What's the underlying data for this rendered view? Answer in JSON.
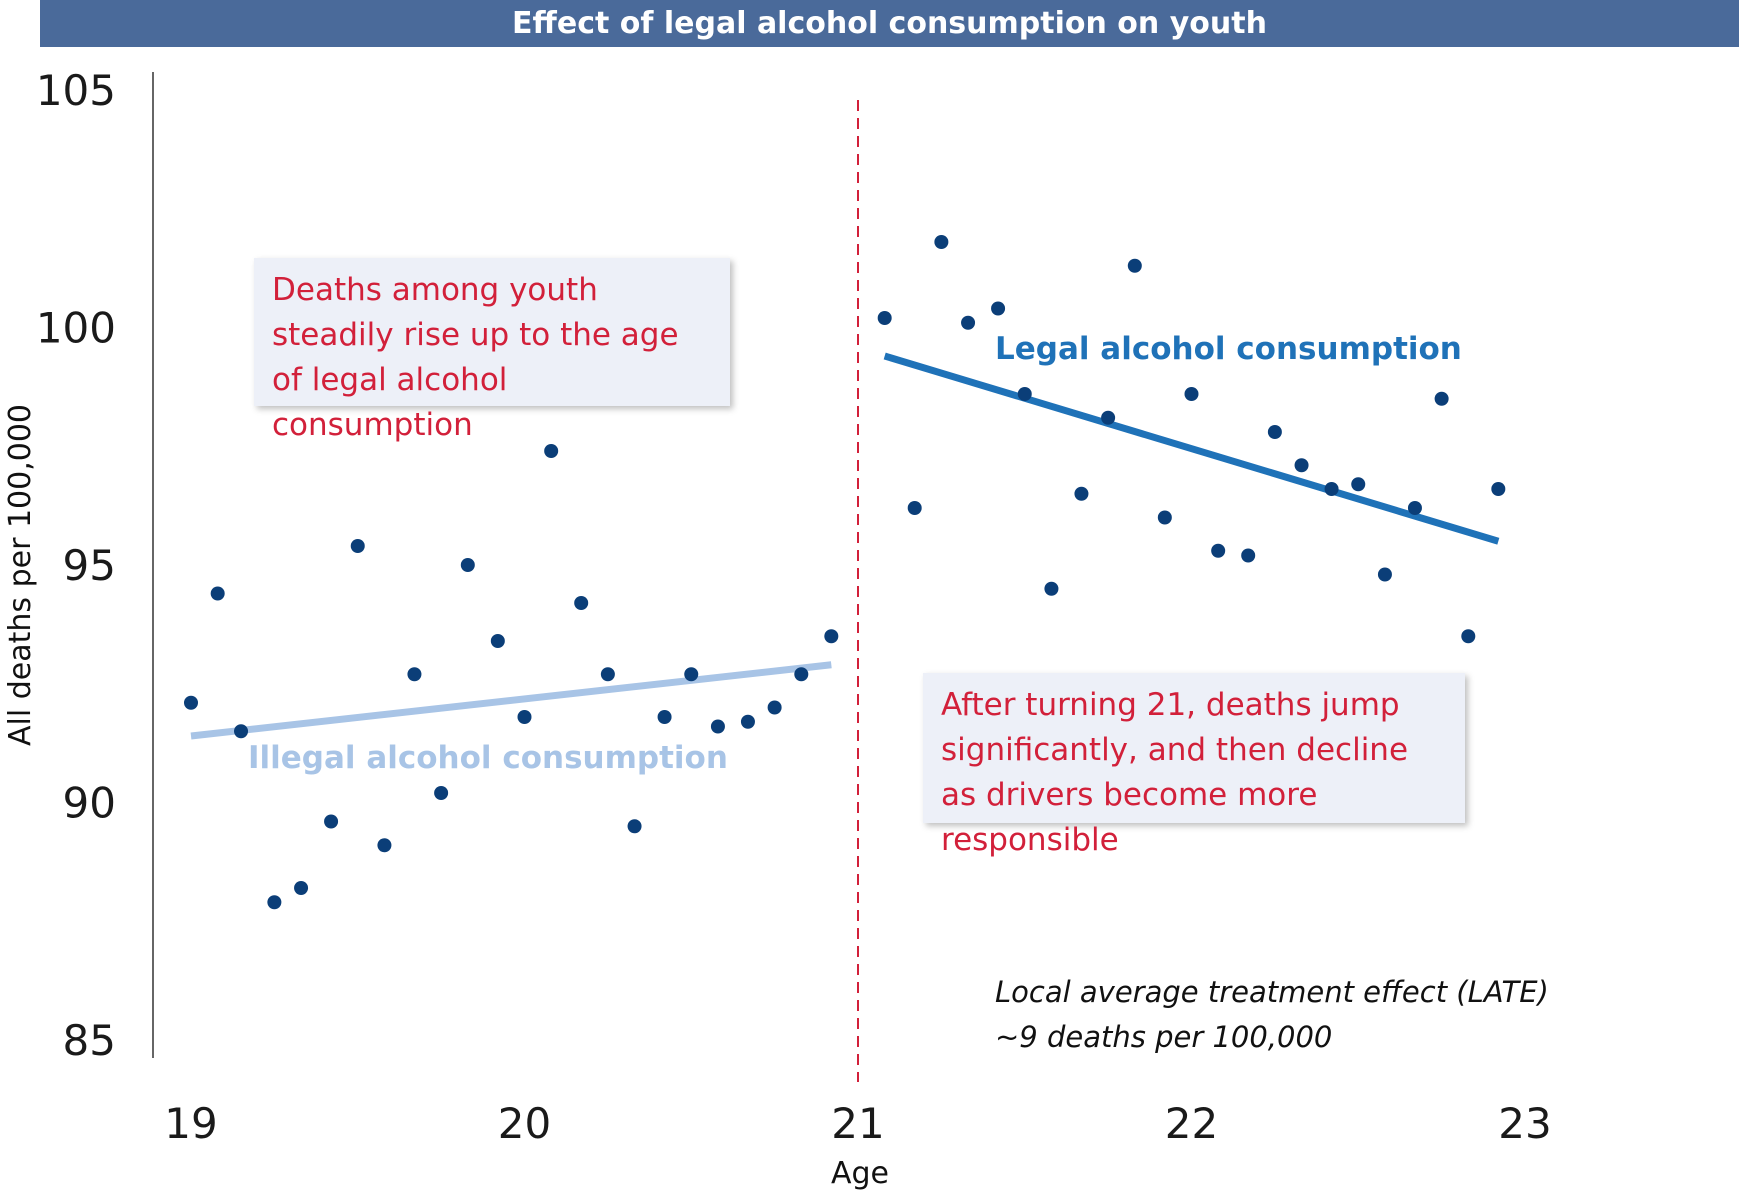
{
  "title": "Effect of legal alcohol consumption on youth",
  "chart_data": {
    "type": "scatter",
    "title": "Effect of legal alcohol consumption on youth",
    "xlabel": "Age",
    "ylabel": "All deaths per 100,000",
    "xlim": [
      19,
      23
    ],
    "ylim": [
      85,
      105
    ],
    "x_ticks": [
      "19",
      "20",
      "21",
      "22",
      "23"
    ],
    "y_ticks": [
      "105",
      "100",
      "95",
      "90",
      "85"
    ],
    "cutoff": 21,
    "grid": false,
    "series": [
      {
        "segment": "below-21",
        "color": "#0b3e78",
        "points": [
          [
            19.0,
            92.1
          ],
          [
            19.08,
            94.4
          ],
          [
            19.15,
            91.5
          ],
          [
            19.25,
            87.9
          ],
          [
            19.33,
            88.2
          ],
          [
            19.42,
            89.6
          ],
          [
            19.5,
            95.4
          ],
          [
            19.58,
            89.1
          ],
          [
            19.67,
            92.7
          ],
          [
            19.75,
            90.2
          ],
          [
            19.83,
            95.0
          ],
          [
            19.92,
            93.4
          ],
          [
            20.0,
            91.8
          ],
          [
            20.08,
            97.4
          ],
          [
            20.17,
            94.2
          ],
          [
            20.25,
            92.7
          ],
          [
            20.33,
            89.5
          ],
          [
            20.42,
            91.8
          ],
          [
            20.5,
            92.7
          ],
          [
            20.58,
            91.6
          ],
          [
            20.67,
            91.7
          ],
          [
            20.75,
            92.0
          ],
          [
            20.83,
            92.7
          ],
          [
            20.92,
            93.5
          ]
        ]
      },
      {
        "segment": "above-21",
        "color": "#0b3e78",
        "points": [
          [
            21.08,
            100.2
          ],
          [
            21.17,
            96.2
          ],
          [
            21.25,
            101.8
          ],
          [
            21.33,
            100.1
          ],
          [
            21.42,
            100.4
          ],
          [
            21.5,
            98.6
          ],
          [
            21.58,
            94.5
          ],
          [
            21.67,
            96.5
          ],
          [
            21.75,
            98.1
          ],
          [
            21.83,
            101.3
          ],
          [
            21.92,
            96.0
          ],
          [
            22.0,
            98.6
          ],
          [
            22.08,
            95.3
          ],
          [
            22.17,
            95.2
          ],
          [
            22.25,
            97.8
          ],
          [
            22.33,
            97.1
          ],
          [
            22.42,
            96.6
          ],
          [
            22.5,
            96.7
          ],
          [
            22.58,
            94.8
          ],
          [
            22.67,
            96.2
          ],
          [
            22.75,
            98.5
          ],
          [
            22.83,
            93.5
          ],
          [
            22.92,
            96.6
          ]
        ]
      }
    ],
    "fit_lines": [
      {
        "name": "Illegal alcohol consumption",
        "color": "#a8c4e6",
        "x": [
          19.0,
          20.92
        ],
        "y": [
          91.4,
          92.9
        ]
      },
      {
        "name": "Legal alcohol consumption",
        "color": "#1f72b8",
        "x": [
          21.08,
          22.92
        ],
        "y": [
          99.4,
          95.5
        ]
      }
    ],
    "annotations": {
      "left_callout": "Deaths among youth steadily rise up to the age of legal alcohol consumption",
      "right_callout": "After turning 21, deaths jump significantly, and then decline as drivers become more responsible",
      "late_line1": "Local average treatment effect (LATE)",
      "late_line2": "~9 deaths per 100,000"
    },
    "colors": {
      "title_bar": "#4a6a9a",
      "point": "#0b3e78",
      "cutoff_line": "#d2203a",
      "callout_text": "#d2203a",
      "callout_bg": "#edf0f8"
    }
  }
}
